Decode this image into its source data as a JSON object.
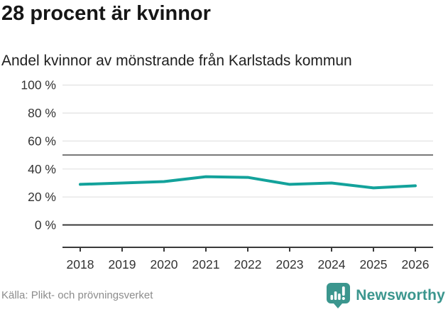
{
  "header": {
    "title": "28 procent är kvinnor",
    "subtitle": "Andel kvinnor av mönstrande från Karlstads kommun"
  },
  "chart_data": {
    "type": "line",
    "title": "28 procent är kvinnor",
    "subtitle": "Andel kvinnor av mönstrande från Karlstads kommun",
    "categories": [
      "2018",
      "2019",
      "2020",
      "2021",
      "2022",
      "2023",
      "2024",
      "2025",
      "2026"
    ],
    "values": [
      29,
      30,
      31,
      34.5,
      34,
      29,
      30,
      26.5,
      28
    ],
    "ytick_labels": [
      "0 %",
      "20 %",
      "40 %",
      "60 %",
      "80 %",
      "100 %"
    ],
    "yticks": [
      0,
      20,
      40,
      60,
      80,
      100
    ],
    "ylim": [
      0,
      100
    ],
    "reference_line": 50,
    "grid": true,
    "legend": "none",
    "xlabel": "",
    "ylabel": ""
  },
  "colors": {
    "line": "#13a29b",
    "gridline": "#e4e4e4",
    "reference_line": "#757575",
    "axis": "#3a3a3a",
    "tick_label": "#333333",
    "brand_teal": "#3b968e"
  },
  "footer": {
    "source": "Källa: Plikt- och prövningsverket",
    "brand": "Newsworthy"
  },
  "icons": {
    "logo": "newsworthy-speech-bubble-bar-chart"
  }
}
